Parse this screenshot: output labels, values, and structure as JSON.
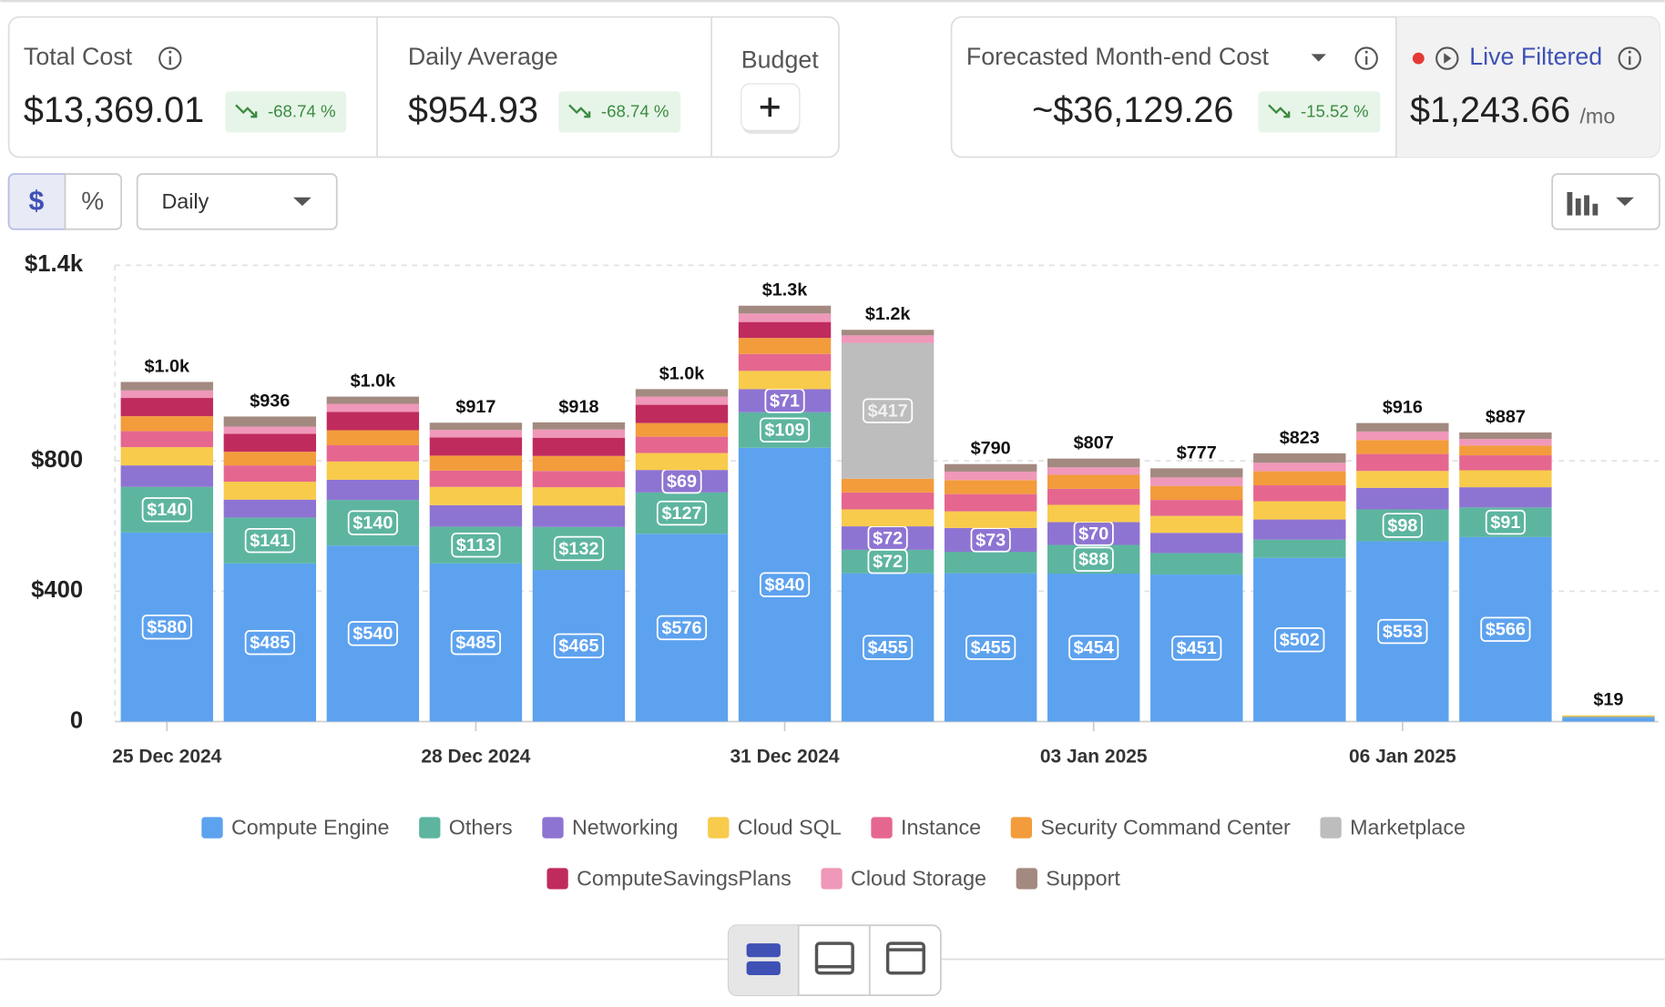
{
  "cards": {
    "total_cost": {
      "label": "Total Cost",
      "value": "$13,369.01",
      "change": "-68.74 %"
    },
    "daily_average": {
      "label": "Daily Average",
      "value": "$954.93",
      "change": "-68.74 %"
    },
    "budget": {
      "label": "Budget"
    },
    "forecast": {
      "label": "Forecasted Month-end Cost",
      "value": "~$36,129.26",
      "change": "-15.52 %"
    },
    "live": {
      "label": "Live Filtered",
      "value": "$1,243.66",
      "unit": "/mo"
    }
  },
  "toolbar": {
    "currency": "$",
    "percent": "%",
    "granularity": "Daily"
  },
  "chart_data": {
    "type": "stacked_bar",
    "categories": [
      "25 Dec 2024",
      null,
      null,
      "28 Dec 2024",
      null,
      null,
      "31 Dec 2024",
      null,
      null,
      "03 Jan 2025",
      null,
      null,
      "06 Jan 2025",
      null,
      null
    ],
    "ylim": [
      0,
      1400
    ],
    "yticks": [
      0,
      {
        "value": 400,
        "label": "$400"
      },
      {
        "value": 800,
        "label": "$800"
      },
      {
        "value": 1400,
        "label": "$1.4k"
      }
    ],
    "grid": true,
    "legend": "bottom",
    "series": [
      {
        "name": "Compute Engine",
        "color": "#5da2ef",
        "values": [
          580,
          485,
          540,
          485,
          465,
          576,
          840,
          455,
          455,
          454,
          451,
          502,
          553,
          566,
          12
        ],
        "value_labels": [
          "$580",
          "$485",
          "$540",
          "$485",
          "$465",
          "$576",
          "$840",
          "$455",
          "$455",
          "$454",
          "$451",
          "$502",
          "$553",
          "$566",
          null
        ]
      },
      {
        "name": "Others",
        "color": "#5db5a0",
        "values": [
          140,
          141,
          140,
          113,
          132,
          127,
          109,
          72,
          66,
          88,
          66,
          56,
          98,
          91,
          2
        ],
        "value_labels": [
          "$140",
          "$141",
          "$140",
          "$113",
          "$132",
          "$127",
          "$109",
          "$72",
          null,
          "$88",
          null,
          null,
          "$98",
          "$91",
          null
        ]
      },
      {
        "name": "Networking",
        "color": "#8e74d2",
        "values": [
          66,
          55,
          62,
          66,
          66,
          69,
          71,
          72,
          73,
          70,
          62,
          62,
          66,
          62,
          1
        ],
        "value_labels": [
          null,
          null,
          null,
          null,
          null,
          "$69",
          "$71",
          "$72",
          "$73",
          "$70",
          null,
          null,
          null,
          null,
          null
        ]
      },
      {
        "name": "Cloud SQL",
        "color": "#f8cb4c",
        "values": [
          56,
          55,
          56,
          56,
          56,
          52,
          56,
          52,
          51,
          53,
          52,
          56,
          52,
          52,
          4
        ]
      },
      {
        "name": "Instance",
        "color": "#e5678f",
        "values": [
          49,
          50,
          50,
          50,
          50,
          50,
          52,
          52,
          53,
          49,
          49,
          49,
          52,
          46,
          0
        ]
      },
      {
        "name": "Security Command Center",
        "color": "#f29c3c",
        "values": [
          46,
          42,
          46,
          46,
          46,
          42,
          49,
          42,
          43,
          43,
          43,
          43,
          43,
          30,
          0
        ]
      },
      {
        "name": "Marketplace",
        "color": "#bdbdbd",
        "values": [
          0,
          0,
          0,
          0,
          0,
          0,
          0,
          417,
          0,
          0,
          0,
          0,
          0,
          0,
          0
        ],
        "value_labels": [
          null,
          null,
          null,
          null,
          null,
          null,
          null,
          "$417",
          null,
          null,
          null,
          null,
          null,
          null,
          null
        ]
      },
      {
        "name": "ComputeSavingsPlans",
        "color": "#c02b5e",
        "values": [
          56,
          55,
          56,
          56,
          56,
          56,
          49,
          0,
          0,
          0,
          0,
          0,
          0,
          0,
          0
        ]
      },
      {
        "name": "Cloud Storage",
        "color": "#ef98b9",
        "values": [
          23,
          22,
          25,
          23,
          25,
          25,
          26,
          23,
          26,
          23,
          26,
          26,
          26,
          20,
          0
        ]
      },
      {
        "name": "Support",
        "color": "#a38a80",
        "values": [
          26,
          31,
          22,
          22,
          22,
          23,
          24,
          17,
          23,
          27,
          28,
          29,
          26,
          20,
          0
        ]
      }
    ],
    "totals": [
      1042,
      936,
      997,
      917,
      918,
      1020,
      1276,
      1202,
      790,
      807,
      777,
      823,
      916,
      887,
      19
    ],
    "total_labels": [
      "$1.0k",
      "$936",
      "$1.0k",
      "$917",
      "$918",
      "$1.0k",
      "$1.3k",
      "$1.2k",
      "$790",
      "$807",
      "$777",
      "$823",
      "$916",
      "$887",
      "$19"
    ]
  }
}
